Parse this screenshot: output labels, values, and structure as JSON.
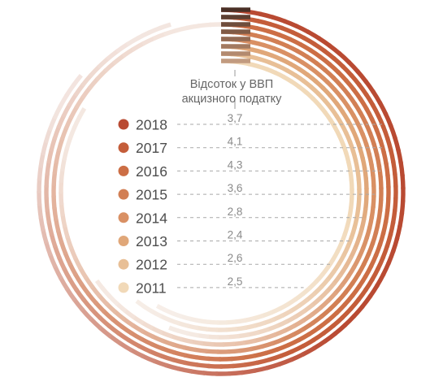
{
  "chart_data": {
    "type": "radial-bar",
    "title_lines": [
      "Відсоток у ВВП",
      "акцизного податку"
    ],
    "categories": [
      "2018",
      "2017",
      "2016",
      "2015",
      "2014",
      "2013",
      "2012",
      "2011"
    ],
    "values": [
      3.7,
      4.1,
      4.3,
      3.6,
      2.8,
      2.4,
      2.6,
      2.5
    ],
    "value_labels": [
      "3,7",
      "4,1",
      "4,3",
      "3,6",
      "2,8",
      "2,4",
      "2,6",
      "2,5"
    ],
    "legend_placement": "left",
    "colors": [
      "#b94a32",
      "#c45d3a",
      "#cc6e45",
      "#d27f54",
      "#d99064",
      "#e0a779",
      "#e8bf96",
      "#f1d9b8"
    ],
    "fade_color": "#f7f0ec",
    "dark_colors": [
      "#4a3026",
      "#5c3f31",
      "#6e4d3c",
      "#805b46",
      "#926a53",
      "#a37a60",
      "#b38a6f",
      "#c29b80"
    ]
  }
}
